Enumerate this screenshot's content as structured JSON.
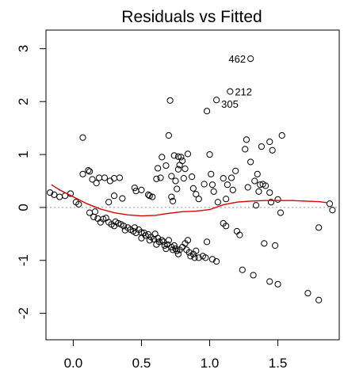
{
  "chart_data": {
    "type": "scatter",
    "title": "Residuals vs Fitted",
    "xlabel": "",
    "ylabel": "",
    "xlim": [
      -0.2,
      1.95
    ],
    "ylim": [
      -2.5,
      3.35
    ],
    "x_ticks": [
      0.0,
      0.5,
      1.0,
      1.5
    ],
    "x_tick_labels": [
      "0.0",
      "0.5",
      "1.0",
      "1.5"
    ],
    "y_ticks": [
      -2,
      -1,
      0,
      1,
      2,
      3
    ],
    "y_tick_labels": [
      "-2",
      "-1",
      "0",
      "1",
      "2",
      "3"
    ],
    "reference_line": {
      "y": 0,
      "style": "dotted",
      "color": "#999999"
    },
    "point_color": "#000000",
    "smooth_color": "#dd0000",
    "points": [
      [
        -0.17,
        0.28
      ],
      [
        -0.14,
        0.24
      ],
      [
        -0.1,
        0.2
      ],
      [
        -0.06,
        0.22
      ],
      [
        -0.02,
        0.26
      ],
      [
        0.02,
        0.1
      ],
      [
        0.04,
        0.06
      ],
      [
        0.07,
        1.32
      ],
      [
        0.07,
        0.63
      ],
      [
        0.11,
        0.7
      ],
      [
        0.12,
        0.68
      ],
      [
        0.14,
        0.53
      ],
      [
        0.17,
        0.46
      ],
      [
        0.19,
        0.56
      ],
      [
        0.23,
        0.56
      ],
      [
        0.27,
        0.5
      ],
      [
        0.3,
        0.55
      ],
      [
        0.34,
        0.56
      ],
      [
        0.3,
        0.22
      ],
      [
        0.26,
        0.1
      ],
      [
        0.36,
        0.17
      ],
      [
        0.45,
        0.37
      ],
      [
        0.46,
        0.31
      ],
      [
        0.5,
        0.33
      ],
      [
        0.55,
        0.24
      ],
      [
        0.56,
        0.22
      ],
      [
        0.58,
        0.2
      ],
      [
        0.61,
        0.54
      ],
      [
        0.62,
        0.74
      ],
      [
        0.64,
        0.56
      ],
      [
        0.65,
        0.95
      ],
      [
        0.68,
        0.79
      ],
      [
        0.7,
        1.36
      ],
      [
        0.71,
        2.02
      ],
      [
        0.72,
        0.59
      ],
      [
        0.72,
        0.2
      ],
      [
        0.73,
        0.12
      ],
      [
        0.74,
        0.98
      ],
      [
        0.75,
        0.5
      ],
      [
        0.76,
        0.35
      ],
      [
        0.77,
        0.96
      ],
      [
        0.77,
        0.72
      ],
      [
        0.78,
        0.8
      ],
      [
        0.79,
        0.95
      ],
      [
        0.8,
        0.88
      ],
      [
        0.81,
        0.55
      ],
      [
        0.82,
        0.73
      ],
      [
        0.84,
        1.01
      ],
      [
        0.87,
        0.58
      ],
      [
        0.88,
        0.36
      ],
      [
        0.9,
        0.25
      ],
      [
        0.92,
        0.16
      ],
      [
        0.96,
        0.44
      ],
      [
        0.98,
        1.82
      ],
      [
        1.0,
        1.0
      ],
      [
        1.01,
        0.63
      ],
      [
        1.02,
        0.43
      ],
      [
        1.03,
        0.3
      ],
      [
        1.05,
        2.03
      ],
      [
        1.06,
        0.1
      ],
      [
        1.1,
        0.55
      ],
      [
        1.12,
        0.16
      ],
      [
        1.13,
        0.43
      ],
      [
        1.15,
        2.19
      ],
      [
        1.16,
        0.56
      ],
      [
        1.17,
        0.33
      ],
      [
        1.19,
        0.69
      ],
      [
        1.26,
        1.1
      ],
      [
        1.27,
        1.28
      ],
      [
        1.28,
        0.38
      ],
      [
        1.3,
        2.81
      ],
      [
        1.3,
        0.86
      ],
      [
        1.33,
        0.5
      ],
      [
        1.34,
        0.04
      ],
      [
        1.35,
        0.63
      ],
      [
        1.36,
        0.3
      ],
      [
        1.37,
        0.43
      ],
      [
        1.38,
        1.15
      ],
      [
        1.39,
        0.44
      ],
      [
        1.41,
        0.41
      ],
      [
        1.44,
        0.28
      ],
      [
        1.44,
        1.24
      ],
      [
        1.45,
        0.1
      ],
      [
        1.46,
        1.08
      ],
      [
        1.5,
        0.15
      ],
      [
        1.52,
        -0.1
      ],
      [
        1.53,
        1.36
      ],
      [
        1.8,
        -0.38
      ],
      [
        1.88,
        0.07
      ],
      [
        1.9,
        -0.05
      ],
      [
        0.12,
        -0.1
      ],
      [
        0.15,
        -0.18
      ],
      [
        0.16,
        -0.08
      ],
      [
        0.18,
        -0.21
      ],
      [
        0.2,
        -0.28
      ],
      [
        0.22,
        -0.22
      ],
      [
        0.24,
        -0.2
      ],
      [
        0.26,
        -0.28
      ],
      [
        0.28,
        -0.32
      ],
      [
        0.3,
        -0.35
      ],
      [
        0.31,
        -0.27
      ],
      [
        0.33,
        -0.3
      ],
      [
        0.35,
        -0.32
      ],
      [
        0.37,
        -0.35
      ],
      [
        0.38,
        -0.43
      ],
      [
        0.4,
        -0.38
      ],
      [
        0.42,
        -0.42
      ],
      [
        0.44,
        -0.45
      ],
      [
        0.45,
        -0.38
      ],
      [
        0.46,
        -0.48
      ],
      [
        0.48,
        -0.42
      ],
      [
        0.5,
        -0.47
      ],
      [
        0.52,
        -0.48
      ],
      [
        0.53,
        -0.53
      ],
      [
        0.55,
        -0.51
      ],
      [
        0.57,
        -0.56
      ],
      [
        0.59,
        -0.6
      ],
      [
        0.6,
        -0.5
      ],
      [
        0.62,
        -0.58
      ],
      [
        0.63,
        -0.65
      ],
      [
        0.65,
        -0.62
      ],
      [
        0.66,
        -0.65
      ],
      [
        0.67,
        -0.72
      ],
      [
        0.69,
        -0.7
      ],
      [
        0.7,
        -0.62
      ],
      [
        0.72,
        -0.75
      ],
      [
        0.73,
        -0.8
      ],
      [
        0.74,
        -0.72
      ],
      [
        0.75,
        -0.78
      ],
      [
        0.76,
        -0.82
      ],
      [
        0.78,
        -0.8
      ],
      [
        0.8,
        -0.75
      ],
      [
        0.82,
        -0.68
      ],
      [
        0.83,
        -0.8
      ],
      [
        0.85,
        -0.85
      ],
      [
        0.86,
        -0.92
      ],
      [
        0.88,
        -0.88
      ],
      [
        0.9,
        -0.82
      ],
      [
        0.92,
        -0.95
      ],
      [
        0.95,
        -0.92
      ],
      [
        0.97,
        -0.95
      ],
      [
        0.98,
        -0.65
      ],
      [
        1.02,
        -0.98
      ],
      [
        1.05,
        -1.02
      ],
      [
        1.12,
        -0.35
      ],
      [
        1.2,
        -0.45
      ],
      [
        1.22,
        -0.52
      ],
      [
        1.24,
        -1.18
      ],
      [
        1.32,
        -1.28
      ],
      [
        1.4,
        -0.68
      ],
      [
        1.44,
        -1.4
      ],
      [
        1.48,
        -0.72
      ],
      [
        1.5,
        -1.45
      ],
      [
        1.72,
        -1.62
      ],
      [
        1.8,
        -1.75
      ],
      [
        0.5,
        -0.58
      ],
      [
        0.56,
        -0.62
      ],
      [
        0.61,
        -0.7
      ],
      [
        0.68,
        -0.78
      ],
      [
        0.77,
        -0.88
      ],
      [
        0.84,
        -0.62
      ],
      [
        0.89,
        -0.95
      ],
      [
        1.1,
        -0.3
      ]
    ],
    "annotations": [
      {
        "label": "462",
        "x": 1.3,
        "y": 2.81
      },
      {
        "label": "212",
        "x": 1.15,
        "y": 2.19
      },
      {
        "label": "305",
        "x": 1.05,
        "y": 2.03
      }
    ],
    "smooth_line": [
      [
        -0.16,
        0.43
      ],
      [
        -0.1,
        0.33
      ],
      [
        0.0,
        0.2
      ],
      [
        0.1,
        0.07
      ],
      [
        0.2,
        -0.03
      ],
      [
        0.3,
        -0.1
      ],
      [
        0.4,
        -0.14
      ],
      [
        0.5,
        -0.16
      ],
      [
        0.6,
        -0.15
      ],
      [
        0.7,
        -0.11
      ],
      [
        0.8,
        -0.08
      ],
      [
        0.9,
        -0.07
      ],
      [
        1.0,
        -0.04
      ],
      [
        1.1,
        0.05
      ],
      [
        1.2,
        0.1
      ],
      [
        1.3,
        0.12
      ],
      [
        1.4,
        0.13
      ],
      [
        1.5,
        0.13
      ],
      [
        1.6,
        0.13
      ],
      [
        1.7,
        0.12
      ],
      [
        1.8,
        0.11
      ],
      [
        1.86,
        0.09
      ]
    ]
  }
}
